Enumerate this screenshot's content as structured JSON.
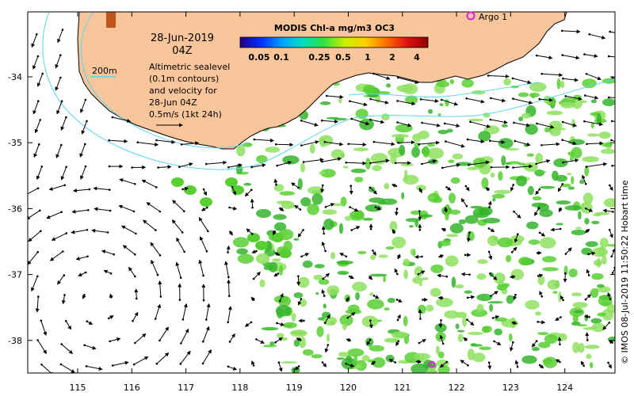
{
  "map": {
    "date": "28-Jun-2019",
    "time": "04Z",
    "colorbar": {
      "title": "MODIS Chl-a mg/m3 OC3",
      "tick_labels": [
        "0.05",
        "0.1",
        "0.25",
        "0.5",
        "1",
        "2",
        "4"
      ],
      "gradient_colors": [
        "#20008c",
        "#0030ff",
        "#00a0ff",
        "#00e0c0",
        "#30e040",
        "#c8f000",
        "#ffd000",
        "#ff7000",
        "#e01010",
        "#900000"
      ]
    },
    "depth_contour_label": "200m",
    "legend_lines": [
      "Altimetric sealevel",
      "(0.1m contours)",
      "and velocity for",
      "28-Jun 04Z"
    ],
    "velocity_scale_label": "0.5m/s (1kt 24h)",
    "argo_label": "Argo 1",
    "credit": "© IMOS 08-Jul-2019 11:50:22 Hobart time",
    "x_ticks": [
      "115",
      "116",
      "117",
      "118",
      "119",
      "120",
      "121",
      "122",
      "123",
      "124"
    ],
    "y_ticks": [
      "-34",
      "-35",
      "-36",
      "-37",
      "-38"
    ],
    "colors": {
      "land": "#f9c59b",
      "coast_outline": "#000000",
      "contour": "#59d7e8",
      "arrow": "#000000",
      "chlorophyll_high": "#35b52c",
      "chlorophyll_mid": "#58cf31",
      "chlorophyll_low": "#8fe060",
      "argo": "#e61ee6",
      "frame": "#000000"
    },
    "icons": {
      "argo_float": "magenta-ring-icon",
      "velocity_arrow": "arrow-icon"
    }
  }
}
